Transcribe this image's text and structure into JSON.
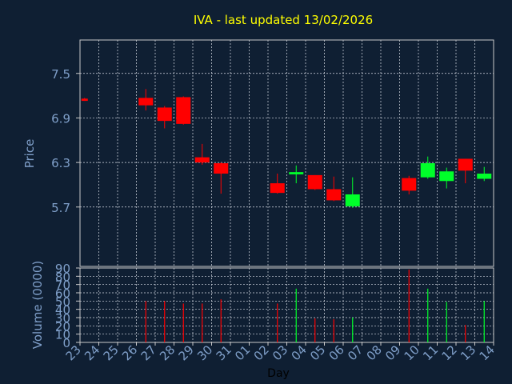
{
  "chart_data": [
    {
      "type": "candlestick",
      "title": "IVA - last updated 13/02/2026",
      "xlabel": "Day",
      "ylabel": "Price",
      "ylim": [
        4.9,
        7.95
      ],
      "yticks": [
        "5.7",
        "6.3",
        "6.9",
        "7.5"
      ],
      "x_tick_labels": [
        "23",
        "24",
        "25",
        "26",
        "27",
        "28",
        "29",
        "30",
        "31",
        "01",
        "02",
        "03",
        "04",
        "05",
        "06",
        "07",
        "08",
        "09",
        "10",
        "11",
        "12",
        "13",
        "14"
      ],
      "grid": true,
      "up_color": "#00ff2a",
      "down_color": "#ff0000",
      "candles": [
        {
          "day": "23",
          "open": 7.16,
          "high": 7.17,
          "low": 7.13,
          "close": 7.13
        },
        {
          "day": "26",
          "open": 7.17,
          "high": 7.29,
          "low": 7.0,
          "close": 7.07
        },
        {
          "day": "27",
          "open": 7.04,
          "high": 7.06,
          "low": 6.76,
          "close": 6.86
        },
        {
          "day": "28",
          "open": 7.18,
          "high": 7.19,
          "low": 6.81,
          "close": 6.82
        },
        {
          "day": "29",
          "open": 6.37,
          "high": 6.55,
          "low": 6.27,
          "close": 6.3
        },
        {
          "day": "30",
          "open": 6.29,
          "high": 6.3,
          "low": 5.88,
          "close": 6.15
        },
        {
          "day": "02",
          "open": 6.02,
          "high": 6.15,
          "low": 5.88,
          "close": 5.89
        },
        {
          "day": "03",
          "open": 6.14,
          "high": 6.26,
          "low": 6.02,
          "close": 6.17
        },
        {
          "day": "04",
          "open": 6.13,
          "high": 6.13,
          "low": 5.93,
          "close": 5.94
        },
        {
          "day": "05",
          "open": 5.94,
          "high": 6.11,
          "low": 5.78,
          "close": 5.79
        },
        {
          "day": "06",
          "open": 5.71,
          "high": 6.1,
          "low": 5.69,
          "close": 5.87
        },
        {
          "day": "09",
          "open": 6.09,
          "high": 6.12,
          "low": 5.87,
          "close": 5.92
        },
        {
          "day": "10",
          "open": 6.1,
          "high": 6.38,
          "low": 6.08,
          "close": 6.29
        },
        {
          "day": "11",
          "open": 6.05,
          "high": 6.23,
          "low": 5.95,
          "close": 6.18
        },
        {
          "day": "12",
          "open": 6.35,
          "high": 6.35,
          "low": 6.02,
          "close": 6.19
        },
        {
          "day": "13",
          "open": 6.08,
          "high": 6.24,
          "low": 6.05,
          "close": 6.15
        }
      ]
    },
    {
      "type": "bar",
      "xlabel": "Day",
      "ylabel": "Volume (0000)",
      "ylim": [
        0,
        90
      ],
      "yticks": [
        "0",
        "10",
        "20",
        "30",
        "40",
        "50",
        "60",
        "70",
        "80",
        "90"
      ],
      "grid": true,
      "bars": [
        {
          "day": "26",
          "value": 50,
          "direction": "down"
        },
        {
          "day": "27",
          "value": 50,
          "direction": "down"
        },
        {
          "day": "28",
          "value": 47,
          "direction": "down"
        },
        {
          "day": "29",
          "value": 47,
          "direction": "down"
        },
        {
          "day": "30",
          "value": 52,
          "direction": "down"
        },
        {
          "day": "02",
          "value": 47,
          "direction": "down"
        },
        {
          "day": "03",
          "value": 65,
          "direction": "up"
        },
        {
          "day": "04",
          "value": 29,
          "direction": "down"
        },
        {
          "day": "05",
          "value": 28,
          "direction": "down"
        },
        {
          "day": "06",
          "value": 30,
          "direction": "up"
        },
        {
          "day": "09",
          "value": 88,
          "direction": "down"
        },
        {
          "day": "10",
          "value": 65,
          "direction": "up"
        },
        {
          "day": "11",
          "value": 49,
          "direction": "up"
        },
        {
          "day": "12",
          "value": 21,
          "direction": "down"
        },
        {
          "day": "13",
          "value": 50,
          "direction": "up"
        }
      ]
    }
  ],
  "colors": {
    "background": "#0f1f33",
    "plot_border": "#c8c8c8",
    "grid": "#d7dce6",
    "title": "#ffff00",
    "axis_text": "#7f9fc9",
    "axis_title": "#7f9fc9",
    "day_label": "#000000"
  }
}
